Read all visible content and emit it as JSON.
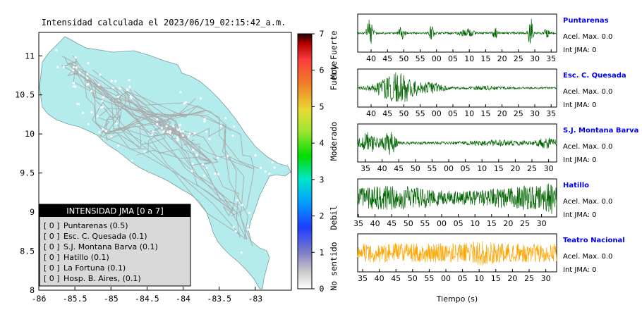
{
  "title": "Intensidad calculada el 2023/06/19_02:15:42_a.m.",
  "map": {
    "x_ticks": [
      "-86",
      "-85.5",
      "-85",
      "-84.5",
      "-84",
      "-83.5",
      "-83"
    ],
    "y_ticks": [
      "11",
      "10.5",
      "10",
      "9.5",
      "9",
      "8.5",
      "8"
    ],
    "xlim": [
      -86,
      -82.5
    ],
    "ylim": [
      8,
      11.3
    ],
    "land_color": "#b4ecee",
    "road_color": "#aaaaaa"
  },
  "legend": {
    "title": "INTENSIDAD JMA [0 a 7]",
    "items": [
      {
        "code": "[ 0 ]",
        "label": "Puntarenas (0.5)"
      },
      {
        "code": "[ 0 ]",
        "label": "Esc. C. Quesada (0.1)"
      },
      {
        "code": "[ 0 ]",
        "label": "S.J. Montana Barva (0.1)"
      },
      {
        "code": "[ 0 ]",
        "label": "Hatillo (0.1)"
      },
      {
        "code": "[ 0 ]",
        "label": "La Fortuna (0.1)"
      },
      {
        "code": "[ 0 ]",
        "label": "Hosp. B. Aires, (0.1)"
      }
    ]
  },
  "colorbar": {
    "ticks": [
      "0",
      "1",
      "2",
      "3",
      "4",
      "5",
      "6",
      "7"
    ],
    "range": [
      0,
      7
    ],
    "labels": [
      "No sentido",
      "Debil",
      "Moderado",
      "Fuerte",
      "Muy Fuerte"
    ]
  },
  "chart_data": [
    {
      "type": "line",
      "name": "Puntarenas",
      "accel": "Acel. Max. 0.0",
      "int": "Int JMA: 0",
      "color": "#006400",
      "ticks": [
        "40",
        "45",
        "50",
        "55",
        "00",
        "05",
        "10",
        "15",
        "20",
        "25",
        "30",
        "35"
      ]
    },
    {
      "type": "line",
      "name": "Esc. C. Quesada",
      "accel": "Acel. Max. 0.0",
      "int": "Int JMA: 0",
      "color": "#006400",
      "ticks": [
        "40",
        "45",
        "50",
        "55",
        "00",
        "05",
        "10",
        "15",
        "20",
        "25",
        "30",
        "35"
      ]
    },
    {
      "type": "line",
      "name": "S.J. Montana Barva",
      "accel": "Acel. Max. 0.0",
      "int": "Int JMA: 0",
      "color": "#006400",
      "ticks": [
        "35",
        "40",
        "45",
        "50",
        "55",
        "00",
        "05",
        "10",
        "15",
        "20",
        "25",
        "30"
      ]
    },
    {
      "type": "line",
      "name": "Hatillo",
      "accel": "Acel. Max. 0.0",
      "int": "Int JMA: 0",
      "color": "#006400",
      "ticks": [
        "35",
        "40",
        "45",
        "50",
        "55",
        "00",
        "05",
        "10",
        "15",
        "20",
        "25",
        "30"
      ]
    },
    {
      "type": "line",
      "name": "Teatro Nacional",
      "accel": "Acel. Max. 0.0",
      "int": "Int JMA: 0",
      "color": "#ffa500",
      "ticks": [
        "35",
        "40",
        "45",
        "50",
        "55",
        "00",
        "05",
        "10",
        "15",
        "20",
        "25",
        "30"
      ]
    }
  ],
  "xlabel": "Tiempo (s)"
}
